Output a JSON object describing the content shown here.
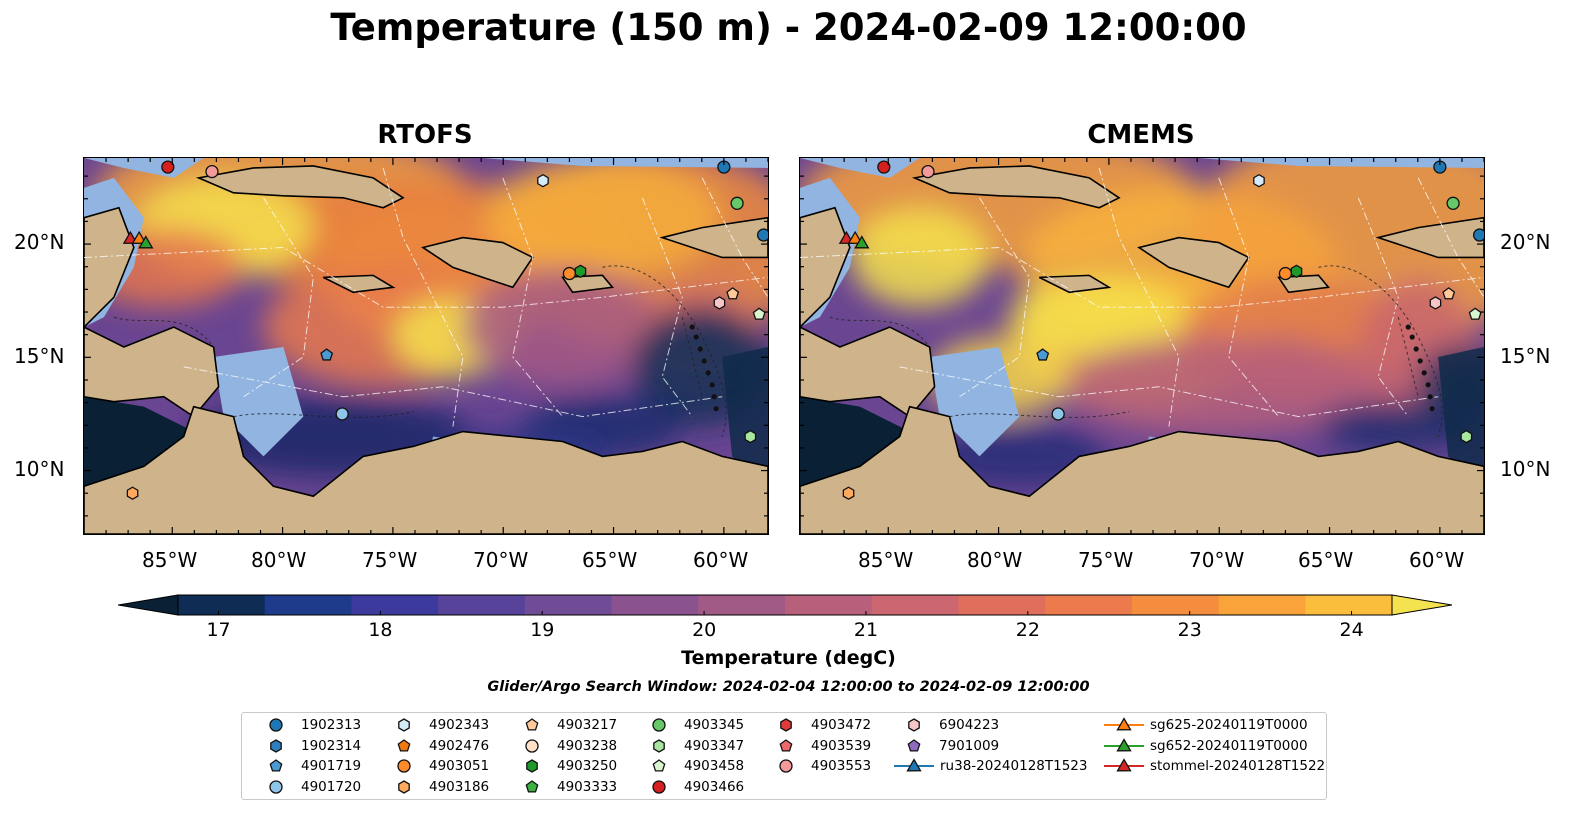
{
  "title": "Temperature (150 m) - 2024-02-09 12:00:00",
  "panels": [
    {
      "title": "RTOFS"
    },
    {
      "title": "CMEMS"
    }
  ],
  "axes": {
    "lat_labels": [
      "20°N",
      "15°N",
      "10°N"
    ],
    "lon_labels": [
      "85°W",
      "80°W",
      "75°W",
      "70°W",
      "65°W",
      "60°W"
    ],
    "lat_range": [
      7.2,
      23.8
    ],
    "lon_range": [
      -89.0,
      -58.0
    ]
  },
  "colorbar": {
    "label": "Temperature (degC)",
    "ticks": [
      "17",
      "18",
      "19",
      "20",
      "21",
      "22",
      "23",
      "24"
    ],
    "range": [
      16.75,
      24.25
    ],
    "colors": [
      "#0a2035",
      "#0f2c55",
      "#1e3a8a",
      "#3d3a9e",
      "#58439a",
      "#704c96",
      "#8a538f",
      "#a05a85",
      "#b75f7b",
      "#cc6670",
      "#e06e5d",
      "#ec7a4d",
      "#f58d3e",
      "#f9a33a",
      "#fbbd3c",
      "#f4e24e"
    ]
  },
  "search_window": "Glider/Argo Search Window: 2024-02-04 12:00:00 to 2024-02-09 12:00:00",
  "legend": [
    {
      "label": "1902313",
      "marker": "circle",
      "color": "#1f77b4"
    },
    {
      "label": "1902314",
      "marker": "hexagon",
      "color": "#2f7fc0"
    },
    {
      "label": "4901719",
      "marker": "pentagon",
      "color": "#4a9ad4"
    },
    {
      "label": "4901720",
      "marker": "circle",
      "color": "#8ec6ea"
    },
    {
      "label": "4902343",
      "marker": "hexagon",
      "color": "#d6ebf8"
    },
    {
      "label": "4902476",
      "marker": "pentagon",
      "color": "#f07a10"
    },
    {
      "label": "4903051",
      "marker": "circle",
      "color": "#ff8c2a"
    },
    {
      "label": "4903186",
      "marker": "hexagon",
      "color": "#ffaa60"
    },
    {
      "label": "4903217",
      "marker": "pentagon",
      "color": "#ffc99a"
    },
    {
      "label": "4903238",
      "marker": "circle",
      "color": "#ffe2c6"
    },
    {
      "label": "4903250",
      "marker": "hexagon",
      "color": "#1f9a2a"
    },
    {
      "label": "4903333",
      "marker": "pentagon",
      "color": "#3cb040"
    },
    {
      "label": "4903345",
      "marker": "circle",
      "color": "#66c866"
    },
    {
      "label": "4903347",
      "marker": "hexagon",
      "color": "#a8e6a0"
    },
    {
      "label": "4903458",
      "marker": "pentagon",
      "color": "#d9f5d0"
    },
    {
      "label": "4903466",
      "marker": "circle",
      "color": "#d62020"
    },
    {
      "label": "4903472",
      "marker": "hexagon",
      "color": "#e03a3a"
    },
    {
      "label": "4903539",
      "marker": "pentagon",
      "color": "#ee6a6a"
    },
    {
      "label": "4903553",
      "marker": "circle",
      "color": "#f49a9a"
    },
    {
      "label": "6904223",
      "marker": "hexagon",
      "color": "#f7c6c6"
    },
    {
      "label": "7901009",
      "marker": "pentagon",
      "color": "#8f6cc0"
    },
    {
      "label": "ru38-20240128T1523",
      "marker": "triangle-line",
      "color": "#1f77b4"
    },
    {
      "label": "sg625-20240119T0000",
      "marker": "triangle-line",
      "color": "#ff7f0e"
    },
    {
      "label": "sg652-20240119T0000",
      "marker": "triangle-line",
      "color": "#2ca02c"
    },
    {
      "label": "stommel-20240128T1522",
      "marker": "triangle-line",
      "color": "#d62728"
    }
  ],
  "markers_on_map": [
    {
      "label": "4903466",
      "lon": -85.2,
      "lat": 23.4
    },
    {
      "label": "4903553",
      "lon": -83.2,
      "lat": 23.2
    },
    {
      "label": "1902313",
      "lon": -60.0,
      "lat": 23.4
    },
    {
      "label": "4902343",
      "lon": -68.2,
      "lat": 22.8
    },
    {
      "label": "4903345",
      "lon": -59.4,
      "lat": 21.8
    },
    {
      "label": "1902313",
      "lon": -58.2,
      "lat": 20.4
    },
    {
      "label": "stommel-20240128T1522",
      "lon": -86.9,
      "lat": 20.2
    },
    {
      "label": "sg625-20240119T0000",
      "lon": -86.5,
      "lat": 20.2
    },
    {
      "label": "sg652-20240119T0000",
      "lon": -86.2,
      "lat": 20.0
    },
    {
      "label": "4903051",
      "lon": -67.0,
      "lat": 18.7
    },
    {
      "label": "4903250",
      "lon": -66.5,
      "lat": 18.8
    },
    {
      "label": "6904223",
      "lon": -60.2,
      "lat": 17.4
    },
    {
      "label": "4903217",
      "lon": -59.6,
      "lat": 17.8
    },
    {
      "label": "4903458",
      "lon": -58.4,
      "lat": 16.9
    },
    {
      "label": "4901719",
      "lon": -78.0,
      "lat": 15.1
    },
    {
      "label": "4901720",
      "lon": -77.3,
      "lat": 12.5
    },
    {
      "label": "4903347",
      "lon": -58.8,
      "lat": 11.5
    },
    {
      "label": "4903186",
      "lon": -86.8,
      "lat": 9.0
    }
  ]
}
